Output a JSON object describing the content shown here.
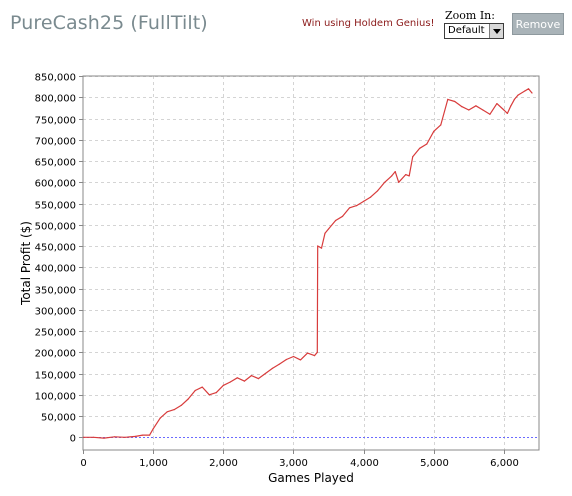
{
  "header": {
    "title": "PureCash25 (FullTilt)",
    "promo_link": "Win using Holdem Genius!",
    "zoom_label": "Zoom In:",
    "zoom_value": "Default",
    "remove_label": "Remove"
  },
  "chart_data": {
    "type": "line",
    "title": "",
    "xlabel": "Games Played",
    "ylabel": "Total Profit ($)",
    "xlim": [
      0,
      6500
    ],
    "ylim": [
      -30000,
      850000
    ],
    "xticks": [
      0,
      1000,
      2000,
      3000,
      4000,
      5000,
      6000
    ],
    "xtick_labels": [
      "0",
      "1,000",
      "2,000",
      "3,000",
      "4,000",
      "5,000",
      "6,000"
    ],
    "yticks": [
      0,
      50000,
      100000,
      150000,
      200000,
      250000,
      300000,
      350000,
      400000,
      450000,
      500000,
      550000,
      600000,
      650000,
      700000,
      750000,
      800000,
      850000
    ],
    "ytick_labels": [
      "0",
      "50,000",
      "100,000",
      "150,000",
      "200,000",
      "250,000",
      "300,000",
      "350,000",
      "400,000",
      "450,000",
      "500,000",
      "550,000",
      "600,000",
      "650,000",
      "700,000",
      "750,000",
      "800,000",
      "850,000"
    ],
    "grid": true,
    "zero_line": true,
    "series": [
      {
        "color": "#d83c3c",
        "x": [
          0,
          150,
          300,
          450,
          600,
          750,
          850,
          950,
          1000,
          1100,
          1200,
          1300,
          1400,
          1500,
          1600,
          1700,
          1800,
          1900,
          2000,
          2100,
          2200,
          2300,
          2400,
          2500,
          2600,
          2700,
          2800,
          2900,
          3000,
          3100,
          3200,
          3300,
          3340,
          3345,
          3400,
          3450,
          3500,
          3600,
          3700,
          3800,
          3900,
          4000,
          4100,
          4200,
          4300,
          4400,
          4450,
          4500,
          4600,
          4650,
          4700,
          4800,
          4900,
          5000,
          5100,
          5200,
          5300,
          5400,
          5500,
          5600,
          5700,
          5800,
          5900,
          6000,
          6050,
          6100,
          6150,
          6200,
          6300,
          6350,
          6400
        ],
        "y": [
          0,
          0,
          -2000,
          1000,
          0,
          2000,
          5000,
          5000,
          20000,
          45000,
          60000,
          65000,
          75000,
          90000,
          110000,
          118000,
          100000,
          105000,
          122000,
          130000,
          140000,
          132000,
          145000,
          138000,
          150000,
          162000,
          172000,
          183000,
          190000,
          182000,
          198000,
          192000,
          200000,
          450000,
          445000,
          480000,
          490000,
          510000,
          520000,
          540000,
          545000,
          555000,
          565000,
          580000,
          600000,
          615000,
          625000,
          600000,
          618000,
          615000,
          660000,
          680000,
          690000,
          720000,
          735000,
          795000,
          790000,
          778000,
          770000,
          780000,
          770000,
          760000,
          785000,
          770000,
          762000,
          780000,
          795000,
          805000,
          815000,
          820000,
          810000
        ]
      }
    ]
  }
}
